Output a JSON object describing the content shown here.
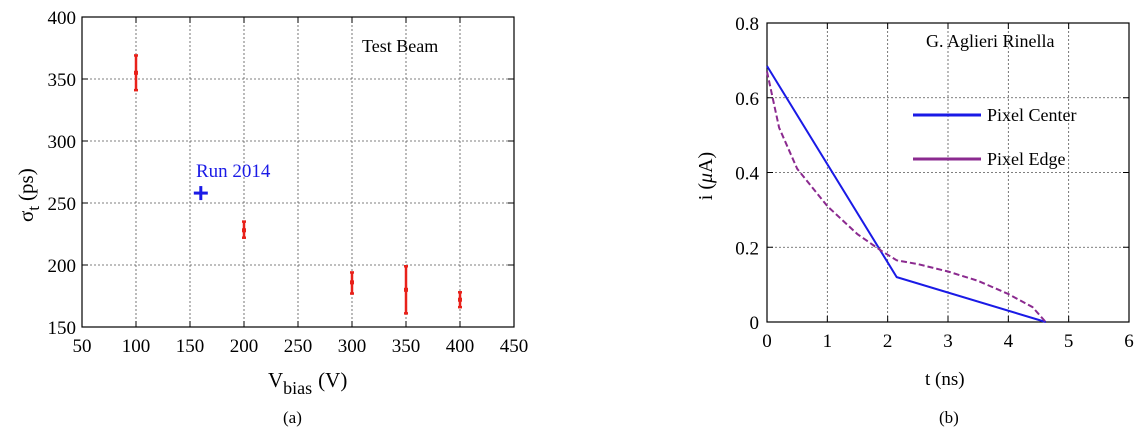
{
  "chart_data": [
    {
      "type": "scatter",
      "caption": "(a)",
      "annotation": "Test Beam",
      "xlabel_main": "V",
      "xlabel_sub": "bias",
      "xlabel_unit": "(V)",
      "ylabel_main": "σ",
      "ylabel_sub": "t",
      "ylabel_unit": "(ps)",
      "xlim": [
        50,
        450
      ],
      "ylim": [
        150,
        400
      ],
      "xticks": [
        50,
        100,
        150,
        200,
        250,
        300,
        350,
        400,
        450
      ],
      "yticks": [
        150,
        200,
        250,
        300,
        350,
        400
      ],
      "grid": true,
      "series": [
        {
          "color": "#e8211a",
          "points": [
            {
              "x": 100,
              "y": 355,
              "err_low": 341,
              "err_high": 369
            },
            {
              "x": 200,
              "y": 228,
              "err_low": 222,
              "err_high": 235
            },
            {
              "x": 300,
              "y": 186,
              "err_low": 177,
              "err_high": 194
            },
            {
              "x": 350,
              "y": 180,
              "err_low": 161,
              "err_high": 199
            },
            {
              "x": 400,
              "y": 172,
              "err_low": 166,
              "err_high": 178
            }
          ]
        },
        {
          "name": "Run 2014",
          "color": "#1a1ae6",
          "marker": "plus",
          "points": [
            {
              "x": 160,
              "y": 258
            }
          ]
        }
      ]
    },
    {
      "type": "line",
      "caption": "(b)",
      "annotation": "G. Aglieri Rinella",
      "xlabel": "t (ns)",
      "ylabel_prefix": "i (",
      "ylabel_mu": "μ",
      "ylabel_suffix": "A)",
      "xlim": [
        0,
        6
      ],
      "ylim": [
        0,
        0.8
      ],
      "xticks": [
        0,
        1,
        2,
        3,
        4,
        5,
        6
      ],
      "ytick_labels": [
        "0",
        "0.2",
        "0.4",
        "0.6",
        "0.8"
      ],
      "yticks": [
        0,
        0.2,
        0.4,
        0.6,
        0.8
      ],
      "grid": true,
      "legend_position": "right-middle",
      "series": [
        {
          "name": "Pixel Center",
          "color": "#1a1ae6",
          "dash": false,
          "x": [
            0,
            2.15,
            4.62
          ],
          "y": [
            0.685,
            0.12,
            0.0
          ]
        },
        {
          "name": "Pixel Edge",
          "color": "#8b2a8f",
          "dash": true,
          "x": [
            0,
            0.2,
            0.5,
            1.0,
            1.5,
            1.9,
            2.15,
            2.5,
            3.0,
            3.5,
            4.0,
            4.4,
            4.62
          ],
          "y": [
            0.67,
            0.52,
            0.41,
            0.31,
            0.235,
            0.19,
            0.165,
            0.155,
            0.135,
            0.11,
            0.075,
            0.04,
            0.0
          ]
        }
      ]
    }
  ]
}
